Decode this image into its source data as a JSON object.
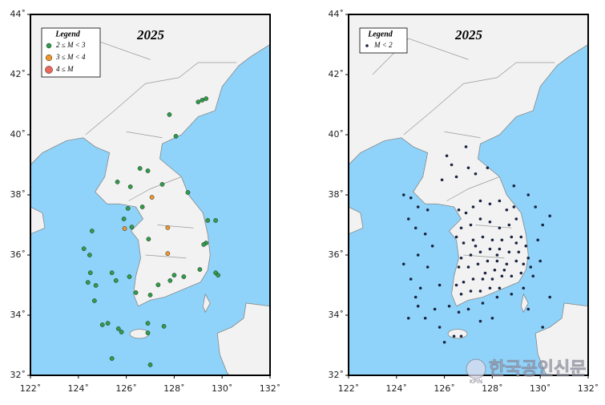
{
  "watermark": {
    "text": "한국공인신문",
    "logo": "KPIN"
  },
  "chart_data": [
    {
      "type": "scatter",
      "title": "2025",
      "legend_title": "Legend",
      "legend": "upper left",
      "xlim": [
        122,
        132
      ],
      "ylim": [
        32,
        44
      ],
      "xticks": [
        {
          "value": 122,
          "label": "122˚"
        },
        {
          "value": 124,
          "label": "124˚"
        },
        {
          "value": 126,
          "label": "126˚"
        },
        {
          "value": 128,
          "label": "128˚"
        },
        {
          "value": 130,
          "label": "130˚"
        },
        {
          "value": 132,
          "label": "132˚"
        }
      ],
      "yticks": [
        {
          "value": 32,
          "label": "32˚"
        },
        {
          "value": 34,
          "label": "34˚"
        },
        {
          "value": 36,
          "label": "36˚"
        },
        {
          "value": 38,
          "label": "38˚"
        },
        {
          "value": 40,
          "label": "40˚"
        },
        {
          "value": 42,
          "label": "42˚"
        },
        {
          "value": 44,
          "label": "44˚"
        }
      ],
      "series": [
        {
          "name": "2 ≤ M < 3",
          "color": "#2e9e48",
          "x": [
            129.0,
            129.17,
            129.33,
            127.8,
            128.07,
            126.57,
            126.9,
            125.63,
            126.17,
            127.5,
            128.57,
            126.07,
            126.67,
            125.9,
            126.23,
            126.93,
            129.4,
            129.73,
            129.33,
            129.23,
            129.07,
            129.73,
            129.83,
            128.0,
            127.83,
            128.4,
            127.33,
            127.0,
            126.13,
            126.4,
            124.57,
            124.23,
            124.47,
            124.5,
            124.4,
            124.73,
            124.67,
            125.57,
            125.4,
            125.67,
            125.0,
            125.23,
            125.8,
            126.9,
            127.57,
            126.9,
            127.0,
            125.4
          ],
          "y": [
            41.09,
            41.15,
            41.2,
            40.67,
            39.95,
            38.88,
            38.8,
            38.43,
            38.27,
            38.35,
            38.08,
            37.55,
            37.6,
            37.2,
            36.93,
            36.53,
            37.15,
            37.15,
            36.4,
            36.35,
            35.52,
            35.41,
            35.33,
            35.33,
            35.15,
            35.28,
            35.01,
            34.67,
            35.28,
            34.75,
            36.8,
            36.21,
            36.0,
            35.41,
            35.09,
            34.99,
            34.48,
            35.15,
            35.41,
            33.55,
            33.68,
            33.73,
            33.44,
            33.73,
            33.63,
            33.41,
            32.35,
            32.56
          ]
        },
        {
          "name": "3 ≤ M < 4",
          "color": "#f0962a",
          "x": [
            127.07,
            125.93,
            127.73,
            127.73
          ],
          "y": [
            37.92,
            36.88,
            36.91,
            36.05
          ]
        },
        {
          "name": "4 ≤ M",
          "color": "#e8685a",
          "x": [],
          "y": []
        }
      ]
    },
    {
      "type": "scatter",
      "title": "2025",
      "legend_title": "Legend",
      "legend": "upper left",
      "xlim": [
        122,
        132
      ],
      "ylim": [
        32,
        44
      ],
      "xticks": [
        {
          "value": 122,
          "label": "122˚"
        },
        {
          "value": 124,
          "label": "124˚"
        },
        {
          "value": 126,
          "label": "126˚"
        },
        {
          "value": 128,
          "label": "128˚"
        },
        {
          "value": 130,
          "label": "130˚"
        },
        {
          "value": 132,
          "label": "132˚"
        }
      ],
      "yticks": [
        {
          "value": 32,
          "label": "32˚"
        },
        {
          "value": 34,
          "label": "34˚"
        },
        {
          "value": 36,
          "label": "36˚"
        },
        {
          "value": 38,
          "label": "38˚"
        },
        {
          "value": 40,
          "label": "40˚"
        },
        {
          "value": 42,
          "label": "42˚"
        },
        {
          "value": 44,
          "label": "44˚"
        }
      ],
      "series": [
        {
          "name": "M < 2",
          "color": "#1a2340",
          "x": [
            126.1,
            126.3,
            127.0,
            127.3,
            126.9,
            127.8,
            128.9,
            126.5,
            125.9,
            124.3,
            124.6,
            124.9,
            125.3,
            124.5,
            124.8,
            125.2,
            125.5,
            124.9,
            124.3,
            124.6,
            125.0,
            125.3,
            125.8,
            124.8,
            124.5,
            125.2,
            125.6,
            124.9,
            126.6,
            126.9,
            127.2,
            127.5,
            127.9,
            128.3,
            128.6,
            128.9,
            129.0,
            128.7,
            128.3,
            127.9,
            127.5,
            127.1,
            126.7,
            126.5,
            126.8,
            127.2,
            127.6,
            128.0,
            128.4,
            128.8,
            129.2,
            129.4,
            129.1,
            128.7,
            128.3,
            127.9,
            127.5,
            127.1,
            126.7,
            126.6,
            127.0,
            127.4,
            127.8,
            128.2,
            128.6,
            129.0,
            129.3,
            129.5,
            129.6,
            129.2,
            128.8,
            128.4,
            128.0,
            127.6,
            127.2,
            126.8,
            126.5,
            126.7,
            127.1,
            127.5,
            127.9,
            128.3,
            128.5,
            128.1,
            127.7,
            129.0,
            128.2,
            127.3,
            126.2,
            126.6,
            127.0,
            127.6,
            128.2,
            128.8,
            129.3,
            129.7,
            130.0,
            129.9,
            130.1,
            129.8,
            129.5,
            130.4,
            126.4,
            126.7,
            127.5,
            128.0,
            129.5,
            130.1,
            130.4,
            125.8,
            126.0
          ],
          "y": [
            39.3,
            39.0,
            38.9,
            38.7,
            39.6,
            38.9,
            38.3,
            38.6,
            38.5,
            38.0,
            37.9,
            37.6,
            37.5,
            37.2,
            36.9,
            36.7,
            36.3,
            36.0,
            35.7,
            35.2,
            34.9,
            35.6,
            35.0,
            34.6,
            33.9,
            33.9,
            34.2,
            34.3,
            37.5,
            37.4,
            37.6,
            37.8,
            37.7,
            37.8,
            37.5,
            37.6,
            37.2,
            37.0,
            36.9,
            37.1,
            37.2,
            37.0,
            36.9,
            36.6,
            36.4,
            36.5,
            36.6,
            36.5,
            36.5,
            36.6,
            36.6,
            36.3,
            36.1,
            36.1,
            36.2,
            36.2,
            36.1,
            36.0,
            35.9,
            35.6,
            35.6,
            35.7,
            35.8,
            35.8,
            35.7,
            35.8,
            35.7,
            35.9,
            35.6,
            35.4,
            35.3,
            35.3,
            35.2,
            35.2,
            35.2,
            35.1,
            35.0,
            34.7,
            34.8,
            34.8,
            34.9,
            34.9,
            35.5,
            35.5,
            35.4,
            36.4,
            36.0,
            36.3,
            34.3,
            34.1,
            34.2,
            34.4,
            34.6,
            34.7,
            34.9,
            35.3,
            35.8,
            36.5,
            37.0,
            37.6,
            38.0,
            37.3,
            33.3,
            33.3,
            33.8,
            33.9,
            34.2,
            33.6,
            34.6,
            33.6,
            33.1
          ]
        }
      ]
    }
  ]
}
